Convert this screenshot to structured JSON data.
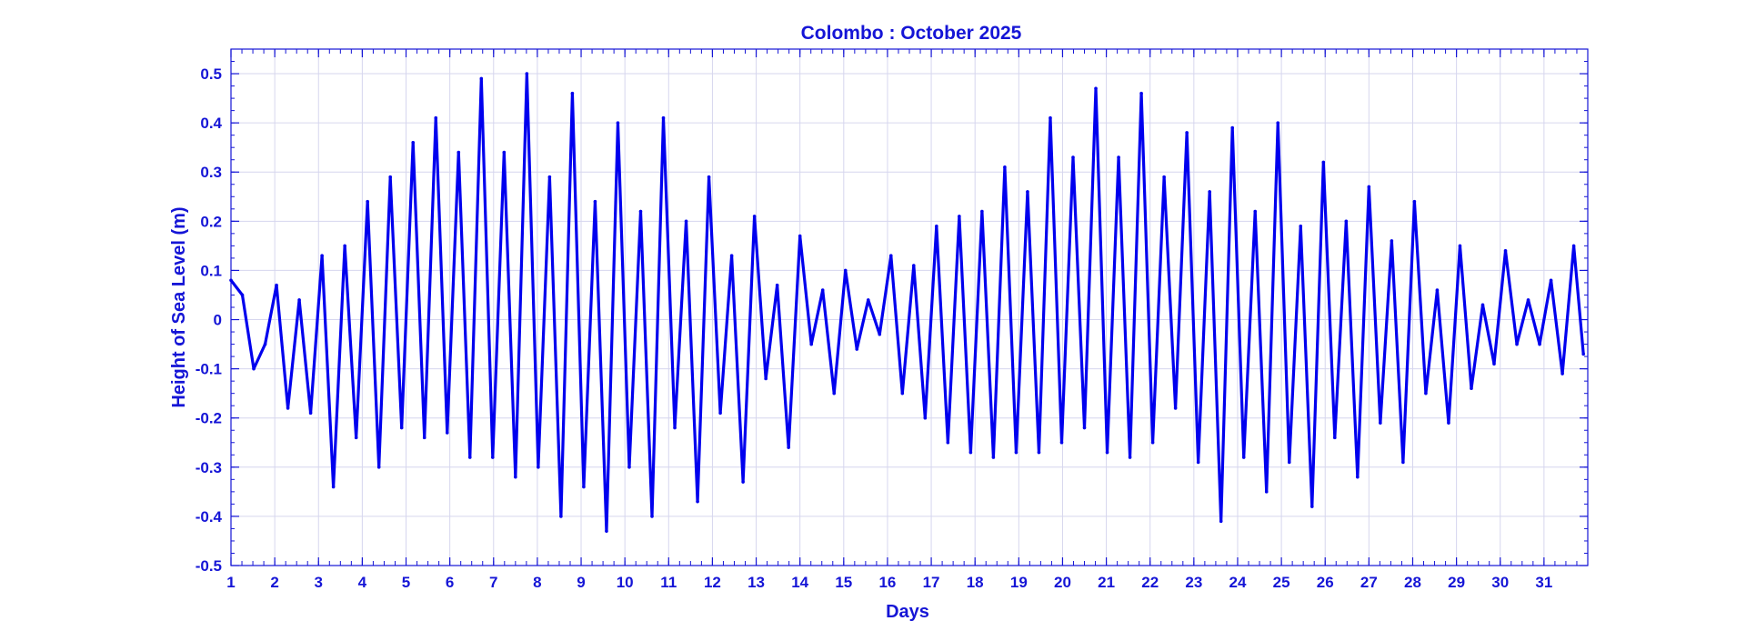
{
  "chart_data": {
    "type": "line",
    "title": "Colombo : October 2025",
    "xlabel": "Days",
    "ylabel": "Height of Sea Level (m)",
    "xlim": [
      1,
      32
    ],
    "ylim": [
      -0.5,
      0.55
    ],
    "x_ticks": [
      "1",
      "2",
      "3",
      "4",
      "5",
      "6",
      "7",
      "8",
      "9",
      "10",
      "11",
      "12",
      "13",
      "14",
      "15",
      "16",
      "17",
      "18",
      "19",
      "20",
      "21",
      "22",
      "23",
      "24",
      "25",
      "26",
      "27",
      "28",
      "29",
      "30",
      "31"
    ],
    "y_ticks": [
      "0.5",
      "0.4",
      "0.3",
      "0.2",
      "0.1",
      "0",
      "-0.1",
      "-0.2",
      "-0.3",
      "-0.4",
      "-0.5"
    ],
    "grid": true,
    "line_color": "#0000ee",
    "text_color": "#1515d6",
    "grid_color": "#d6d6ee",
    "series": [
      {
        "x": [
          1.0,
          1.26,
          1.52,
          1.78,
          2.04,
          2.3,
          2.56,
          2.82,
          3.08,
          3.34,
          3.6,
          3.86,
          4.12,
          4.38,
          4.64,
          4.9,
          5.16,
          5.42,
          5.68,
          5.94,
          6.2,
          6.46,
          6.72,
          6.98,
          7.24,
          7.5,
          7.76,
          8.02,
          8.28,
          8.54,
          8.8,
          9.06,
          9.32,
          9.58,
          9.84,
          10.1,
          10.36,
          10.62,
          10.88,
          11.14,
          11.4,
          11.66,
          11.92,
          12.18,
          12.44,
          12.7,
          12.96,
          13.22,
          13.48,
          13.74,
          14.0,
          14.26,
          14.52,
          14.78,
          15.04,
          15.3,
          15.56,
          15.82,
          16.08,
          16.34,
          16.6,
          16.86,
          17.12,
          17.38,
          17.64,
          17.9,
          18.16,
          18.42,
          18.68,
          18.94,
          19.2,
          19.46,
          19.72,
          19.98,
          20.24,
          20.5,
          20.76,
          21.02,
          21.28,
          21.54,
          21.8,
          22.06,
          22.32,
          22.58,
          22.84,
          23.1,
          23.36,
          23.62,
          23.88,
          24.14,
          24.4,
          24.66,
          24.92,
          25.18,
          25.44,
          25.7,
          25.96,
          26.22,
          26.48,
          26.74,
          27.0,
          27.26,
          27.52,
          27.78,
          28.04,
          28.3,
          28.56,
          28.82,
          29.08,
          29.34,
          29.6,
          29.86,
          30.12,
          30.38,
          30.64,
          30.9,
          31.16,
          31.42,
          31.68,
          31.9
        ],
        "y": [
          0.08,
          0.05,
          -0.1,
          -0.05,
          0.07,
          -0.18,
          0.04,
          -0.19,
          0.13,
          -0.34,
          0.15,
          -0.24,
          0.24,
          -0.3,
          0.29,
          -0.22,
          0.36,
          -0.24,
          0.41,
          -0.23,
          0.34,
          -0.28,
          0.49,
          -0.28,
          0.34,
          -0.32,
          0.5,
          -0.3,
          0.29,
          -0.4,
          0.46,
          -0.34,
          0.24,
          -0.43,
          0.4,
          -0.3,
          0.22,
          -0.4,
          0.41,
          -0.22,
          0.2,
          -0.37,
          0.29,
          -0.19,
          0.13,
          -0.33,
          0.21,
          -0.12,
          0.07,
          -0.26,
          0.17,
          -0.05,
          0.06,
          -0.15,
          0.1,
          -0.06,
          0.04,
          -0.03,
          0.13,
          -0.15,
          0.11,
          -0.2,
          0.19,
          -0.25,
          0.21,
          -0.27,
          0.22,
          -0.28,
          0.31,
          -0.27,
          0.26,
          -0.27,
          0.41,
          -0.25,
          0.33,
          -0.22,
          0.47,
          -0.27,
          0.33,
          -0.28,
          0.46,
          -0.25,
          0.29,
          -0.18,
          0.38,
          -0.29,
          0.26,
          -0.41,
          0.39,
          -0.28,
          0.22,
          -0.35,
          0.4,
          -0.29,
          0.19,
          -0.38,
          0.32,
          -0.24,
          0.2,
          -0.32,
          0.27,
          -0.21,
          0.16,
          -0.29,
          0.24,
          -0.15,
          0.06,
          -0.21,
          0.15,
          -0.14,
          0.03,
          -0.09,
          0.14,
          -0.05,
          0.04,
          -0.05,
          0.08,
          -0.11,
          0.15,
          -0.07
        ]
      }
    ]
  }
}
